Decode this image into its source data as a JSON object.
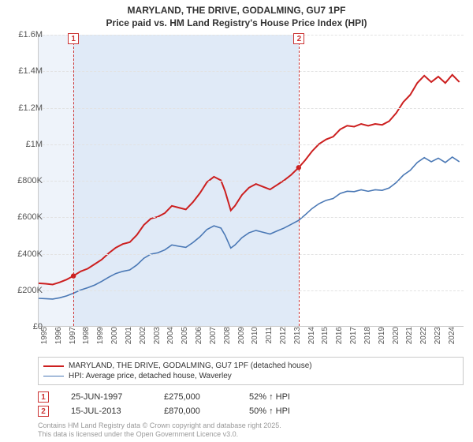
{
  "title_line1": "MARYLAND, THE DRIVE, GODALMING, GU7 1PF",
  "title_line2": "Price paid vs. HM Land Registry's House Price Index (HPI)",
  "chart": {
    "type": "line",
    "background_color": "#ffffff",
    "grid_color": "#e2e2e2",
    "axis_color": "#c9c9c9",
    "xlim": [
      1995,
      2025.3
    ],
    "ylim": [
      0,
      1600000
    ],
    "ytick_step": 200000,
    "yticks": [
      "£0",
      "£200K",
      "£400K",
      "£600K",
      "£800K",
      "£1M",
      "£1.2M",
      "£1.4M",
      "£1.6M"
    ],
    "xticks": [
      1995,
      1996,
      1997,
      1998,
      1999,
      2000,
      2001,
      2002,
      2003,
      2004,
      2005,
      2006,
      2007,
      2008,
      2009,
      2010,
      2011,
      2012,
      2013,
      2014,
      2015,
      2016,
      2017,
      2018,
      2019,
      2020,
      2021,
      2022,
      2023,
      2024
    ],
    "shade_ranges": [
      [
        1995,
        1997.48
      ],
      [
        1997.48,
        2013.54
      ]
    ],
    "shade_colors": [
      "rgba(160,190,230,0.18)",
      "rgba(160,190,230,0.32)"
    ],
    "price_series": {
      "color": "#cc1f1f",
      "width": 2,
      "data": [
        [
          1995,
          235000
        ],
        [
          1995.5,
          232000
        ],
        [
          1996,
          228000
        ],
        [
          1996.5,
          240000
        ],
        [
          1997,
          255000
        ],
        [
          1997.48,
          275000
        ],
        [
          1998,
          300000
        ],
        [
          1998.5,
          315000
        ],
        [
          1999,
          340000
        ],
        [
          1999.5,
          365000
        ],
        [
          2000,
          400000
        ],
        [
          2000.5,
          430000
        ],
        [
          2001,
          450000
        ],
        [
          2001.5,
          460000
        ],
        [
          2002,
          500000
        ],
        [
          2002.5,
          555000
        ],
        [
          2003,
          590000
        ],
        [
          2003.5,
          600000
        ],
        [
          2004,
          620000
        ],
        [
          2004.5,
          660000
        ],
        [
          2005,
          650000
        ],
        [
          2005.5,
          640000
        ],
        [
          2006,
          680000
        ],
        [
          2006.5,
          730000
        ],
        [
          2007,
          790000
        ],
        [
          2007.5,
          820000
        ],
        [
          2008,
          800000
        ],
        [
          2008.3,
          740000
        ],
        [
          2008.7,
          635000
        ],
        [
          2009,
          660000
        ],
        [
          2009.5,
          720000
        ],
        [
          2010,
          760000
        ],
        [
          2010.5,
          780000
        ],
        [
          2011,
          765000
        ],
        [
          2011.5,
          750000
        ],
        [
          2012,
          775000
        ],
        [
          2012.5,
          800000
        ],
        [
          2013,
          830000
        ],
        [
          2013.54,
          870000
        ],
        [
          2014,
          910000
        ],
        [
          2014.5,
          960000
        ],
        [
          2015,
          1000000
        ],
        [
          2015.5,
          1025000
        ],
        [
          2016,
          1040000
        ],
        [
          2016.5,
          1080000
        ],
        [
          2017,
          1100000
        ],
        [
          2017.5,
          1095000
        ],
        [
          2018,
          1110000
        ],
        [
          2018.5,
          1100000
        ],
        [
          2019,
          1110000
        ],
        [
          2019.5,
          1105000
        ],
        [
          2020,
          1125000
        ],
        [
          2020.5,
          1170000
        ],
        [
          2021,
          1230000
        ],
        [
          2021.5,
          1270000
        ],
        [
          2022,
          1335000
        ],
        [
          2022.5,
          1375000
        ],
        [
          2023,
          1340000
        ],
        [
          2023.5,
          1370000
        ],
        [
          2024,
          1335000
        ],
        [
          2024.5,
          1380000
        ],
        [
          2025,
          1340000
        ]
      ]
    },
    "hpi_series": {
      "color": "#4a78b5",
      "width": 1.6,
      "data": [
        [
          1995,
          152000
        ],
        [
          1995.5,
          150000
        ],
        [
          1996,
          148000
        ],
        [
          1996.5,
          155000
        ],
        [
          1997,
          165000
        ],
        [
          1997.48,
          180000
        ],
        [
          1998,
          198000
        ],
        [
          1998.5,
          210000
        ],
        [
          1999,
          225000
        ],
        [
          1999.5,
          245000
        ],
        [
          2000,
          268000
        ],
        [
          2000.5,
          288000
        ],
        [
          2001,
          300000
        ],
        [
          2001.5,
          308000
        ],
        [
          2002,
          335000
        ],
        [
          2002.5,
          372000
        ],
        [
          2003,
          395000
        ],
        [
          2003.5,
          402000
        ],
        [
          2004,
          418000
        ],
        [
          2004.5,
          445000
        ],
        [
          2005,
          438000
        ],
        [
          2005.5,
          432000
        ],
        [
          2006,
          458000
        ],
        [
          2006.5,
          490000
        ],
        [
          2007,
          530000
        ],
        [
          2007.5,
          550000
        ],
        [
          2008,
          538000
        ],
        [
          2008.3,
          498000
        ],
        [
          2008.7,
          428000
        ],
        [
          2009,
          445000
        ],
        [
          2009.5,
          485000
        ],
        [
          2010,
          512000
        ],
        [
          2010.5,
          525000
        ],
        [
          2011,
          515000
        ],
        [
          2011.5,
          505000
        ],
        [
          2012,
          522000
        ],
        [
          2012.5,
          538000
        ],
        [
          2013,
          558000
        ],
        [
          2013.54,
          580000
        ],
        [
          2014,
          610000
        ],
        [
          2014.5,
          645000
        ],
        [
          2015,
          672000
        ],
        [
          2015.5,
          690000
        ],
        [
          2016,
          700000
        ],
        [
          2016.5,
          728000
        ],
        [
          2017,
          740000
        ],
        [
          2017.5,
          738000
        ],
        [
          2018,
          748000
        ],
        [
          2018.5,
          740000
        ],
        [
          2019,
          748000
        ],
        [
          2019.5,
          745000
        ],
        [
          2020,
          758000
        ],
        [
          2020.5,
          788000
        ],
        [
          2021,
          828000
        ],
        [
          2021.5,
          855000
        ],
        [
          2022,
          898000
        ],
        [
          2022.5,
          925000
        ],
        [
          2023,
          902000
        ],
        [
          2023.5,
          922000
        ],
        [
          2024,
          898000
        ],
        [
          2024.5,
          928000
        ],
        [
          2025,
          902000
        ]
      ]
    },
    "sale_markers": [
      {
        "n": "1",
        "x": 1997.48,
        "y": 275000,
        "top": true
      },
      {
        "n": "2",
        "x": 2013.54,
        "y": 870000,
        "top": true
      }
    ]
  },
  "legend": {
    "items": [
      {
        "color": "#cc1f1f",
        "label": "MARYLAND, THE DRIVE, GODALMING, GU7 1PF (detached house)",
        "width": 2
      },
      {
        "color": "#4a78b5",
        "label": "HPI: Average price, detached house, Waverley",
        "width": 1.6
      }
    ]
  },
  "sales": [
    {
      "n": "1",
      "date": "25-JUN-1997",
      "price": "£275,000",
      "delta": "52% ↑ HPI"
    },
    {
      "n": "2",
      "date": "15-JUL-2013",
      "price": "£870,000",
      "delta": "50% ↑ HPI"
    }
  ],
  "footer_line1": "Contains HM Land Registry data © Crown copyright and database right 2025.",
  "footer_line2": "This data is licensed under the Open Government Licence v3.0."
}
